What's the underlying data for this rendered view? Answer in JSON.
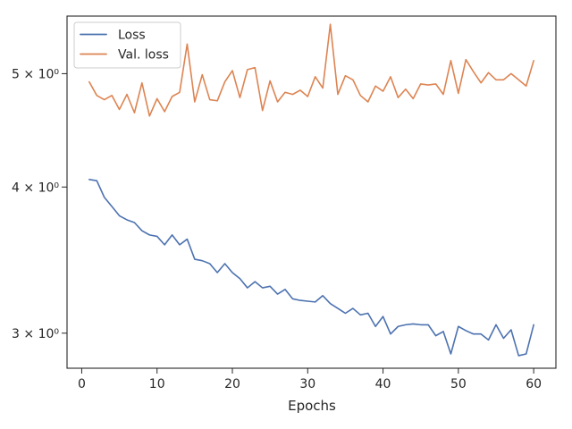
{
  "chart_data": {
    "type": "line",
    "title": "",
    "xlabel": "Epochs",
    "ylabel": "",
    "yscale": "log",
    "grid": false,
    "legend_position": "upper-left",
    "xlim": [
      -1.95,
      62.95
    ],
    "ylim": [
      2.8,
      5.6
    ],
    "x_ticks": [
      0,
      10,
      20,
      30,
      40,
      50,
      60
    ],
    "x_tick_labels": [
      "0",
      "10",
      "20",
      "30",
      "40",
      "50",
      "60"
    ],
    "y_ticks": [
      3,
      4,
      5
    ],
    "y_tick_labels": [
      "3 × 10⁰",
      "4 × 10⁰",
      "5 × 10⁰"
    ],
    "x": [
      1,
      2,
      3,
      4,
      5,
      6,
      7,
      8,
      9,
      10,
      11,
      12,
      13,
      14,
      15,
      16,
      17,
      18,
      19,
      20,
      21,
      22,
      23,
      24,
      25,
      26,
      27,
      28,
      29,
      30,
      31,
      32,
      33,
      34,
      35,
      36,
      37,
      38,
      39,
      40,
      41,
      42,
      43,
      44,
      45,
      46,
      47,
      48,
      49,
      50,
      51,
      52,
      53,
      54,
      55,
      56,
      57,
      58,
      59,
      60
    ],
    "series": [
      {
        "name": "Loss",
        "color": "#4c72b0",
        "values": [
          4.06,
          4.05,
          3.92,
          3.85,
          3.78,
          3.75,
          3.73,
          3.67,
          3.64,
          3.63,
          3.57,
          3.64,
          3.57,
          3.61,
          3.47,
          3.46,
          3.44,
          3.38,
          3.44,
          3.38,
          3.34,
          3.28,
          3.32,
          3.28,
          3.29,
          3.24,
          3.27,
          3.21,
          3.2,
          3.195,
          3.19,
          3.23,
          3.18,
          3.15,
          3.12,
          3.15,
          3.11,
          3.12,
          3.04,
          3.1,
          2.995,
          3.04,
          3.05,
          3.055,
          3.05,
          3.05,
          2.985,
          3.01,
          2.88,
          3.04,
          3.015,
          2.995,
          2.995,
          2.96,
          3.05,
          2.97,
          3.02,
          2.87,
          2.88,
          3.05
        ]
      },
      {
        "name": "Val. loss",
        "color": "#dd8452",
        "values": [
          4.92,
          4.79,
          4.75,
          4.79,
          4.66,
          4.8,
          4.63,
          4.91,
          4.6,
          4.76,
          4.64,
          4.78,
          4.82,
          5.3,
          4.73,
          4.99,
          4.75,
          4.74,
          4.92,
          5.03,
          4.77,
          5.04,
          5.06,
          4.65,
          4.93,
          4.73,
          4.82,
          4.8,
          4.84,
          4.78,
          4.97,
          4.86,
          5.51,
          4.8,
          4.98,
          4.94,
          4.79,
          4.73,
          4.88,
          4.83,
          4.97,
          4.77,
          4.85,
          4.76,
          4.9,
          4.89,
          4.9,
          4.8,
          5.13,
          4.81,
          5.14,
          5.02,
          4.91,
          5.01,
          4.94,
          4.94,
          5.0,
          4.94,
          4.88,
          5.13
        ]
      }
    ]
  }
}
